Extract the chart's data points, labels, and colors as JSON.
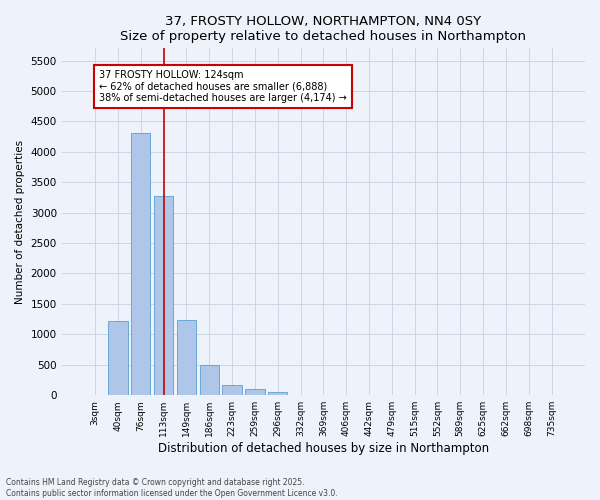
{
  "title": "37, FROSTY HOLLOW, NORTHAMPTON, NN4 0SY",
  "subtitle": "Size of property relative to detached houses in Northampton",
  "xlabel": "Distribution of detached houses by size in Northampton",
  "ylabel": "Number of detached properties",
  "categories": [
    "3sqm",
    "40sqm",
    "76sqm",
    "113sqm",
    "149sqm",
    "186sqm",
    "223sqm",
    "259sqm",
    "296sqm",
    "332sqm",
    "369sqm",
    "406sqm",
    "442sqm",
    "479sqm",
    "515sqm",
    "552sqm",
    "589sqm",
    "625sqm",
    "662sqm",
    "698sqm",
    "735sqm"
  ],
  "values": [
    0,
    1220,
    4310,
    3280,
    1240,
    490,
    175,
    95,
    55,
    0,
    0,
    0,
    0,
    0,
    0,
    0,
    0,
    0,
    0,
    0,
    0
  ],
  "bar_color": "#aec6e8",
  "bar_edge_color": "#5a9fd4",
  "vline_x": 3.0,
  "vline_color": "#cc0000",
  "annotation_text": "37 FROSTY HOLLOW: 124sqm\n← 62% of detached houses are smaller (6,888)\n38% of semi-detached houses are larger (4,174) →",
  "annotation_box_color": "white",
  "annotation_box_edge_color": "#cc0000",
  "ylim": [
    0,
    5700
  ],
  "yticks": [
    0,
    500,
    1000,
    1500,
    2000,
    2500,
    3000,
    3500,
    4000,
    4500,
    5000,
    5500
  ],
  "footer_line1": "Contains HM Land Registry data © Crown copyright and database right 2025.",
  "footer_line2": "Contains public sector information licensed under the Open Government Licence v3.0.",
  "bg_color": "#eef2fa",
  "plot_bg_color": "#eef2fa",
  "grid_color": "#c8d0e0"
}
